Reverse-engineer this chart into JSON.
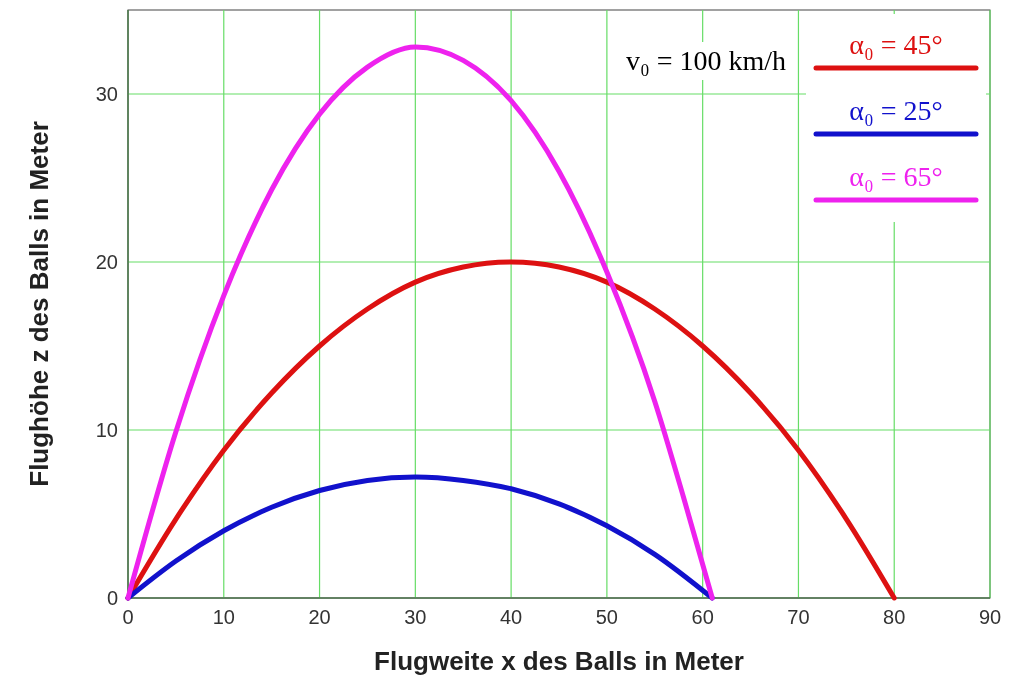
{
  "chart_data": {
    "type": "line",
    "xlabel": "Flugweite x des Balls in Meter",
    "ylabel": "Flughöhe z des Balls in Meter",
    "xlim": [
      0,
      90
    ],
    "xticks": [
      0,
      10,
      20,
      30,
      40,
      50,
      60,
      70,
      80,
      90
    ],
    "ylim": [
      0,
      35
    ],
    "yticks": [
      0,
      10,
      20,
      30
    ],
    "grid": true,
    "legend": "top right",
    "annotations": [
      "v₀ = 100 km/h"
    ],
    "series": [
      {
        "name": "α₀ = 45°",
        "color": "#dd1111",
        "x": [
          0,
          5,
          10,
          15,
          20,
          25,
          30,
          35,
          40,
          45,
          50,
          55,
          60,
          65,
          70,
          75,
          80
        ],
        "values": [
          0,
          4.7,
          8.8,
          12.2,
          15,
          17.2,
          18.8,
          19.7,
          20,
          19.7,
          18.8,
          17.2,
          15,
          12.2,
          8.8,
          4.7,
          0
        ]
      },
      {
        "name": "α₀ = 25°",
        "color": "#1111cc",
        "x": [
          0,
          5,
          10,
          15,
          20,
          25,
          30,
          35,
          40,
          45,
          50,
          55,
          61
        ],
        "values": [
          0,
          2.2,
          4,
          5.4,
          6.4,
          7,
          7.2,
          7,
          6.5,
          5.6,
          4.3,
          2.6,
          0
        ]
      },
      {
        "name": "α₀ = 65°",
        "color": "#ee22ee",
        "x": [
          0,
          5,
          10,
          15,
          20,
          25,
          30,
          35,
          40,
          45,
          50,
          55,
          58,
          61
        ],
        "values": [
          0,
          9.9,
          18,
          24.3,
          28.8,
          31.6,
          32.8,
          32,
          29.6,
          25.4,
          19.4,
          11.7,
          6,
          0
        ]
      }
    ]
  }
}
